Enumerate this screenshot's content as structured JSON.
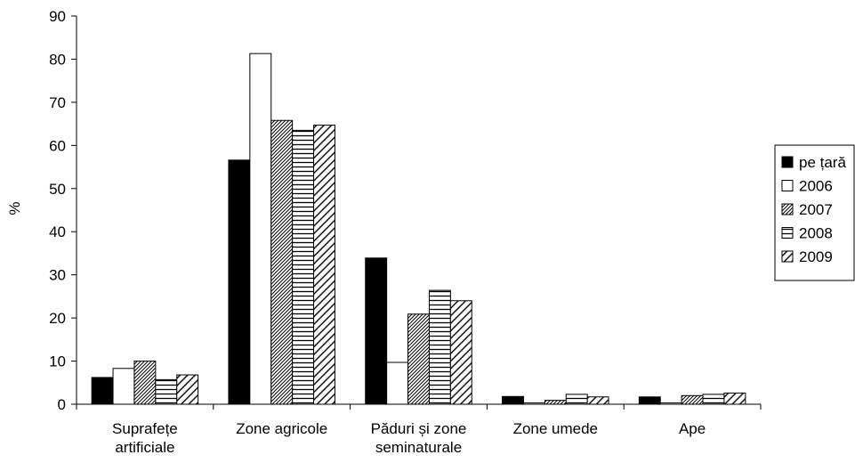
{
  "chart_data": {
    "type": "bar",
    "ylabel": "%",
    "ylim": [
      0,
      90
    ],
    "yticks": [
      0,
      10,
      20,
      30,
      40,
      50,
      60,
      70,
      80,
      90
    ],
    "grid": false,
    "legend_position": "right",
    "categories": [
      [
        "Suprafețe",
        "artificiale"
      ],
      [
        "Zone agricole"
      ],
      [
        "Păduri și zone",
        "seminaturale"
      ],
      [
        "Zone umede"
      ],
      [
        "Ape"
      ]
    ],
    "series": [
      {
        "name": "pe țară",
        "pattern": "solid-black",
        "values": [
          6.2,
          56.6,
          33.9,
          1.8,
          1.7
        ]
      },
      {
        "name": "2006",
        "pattern": "white",
        "values": [
          8.3,
          81.3,
          9.7,
          0.3,
          0.3
        ]
      },
      {
        "name": "2007",
        "pattern": "diagonal-dense",
        "values": [
          10.0,
          65.8,
          20.9,
          0.9,
          2.0
        ]
      },
      {
        "name": "2008",
        "pattern": "horizontal-lines",
        "values": [
          5.7,
          63.5,
          26.4,
          2.3,
          2.3
        ]
      },
      {
        "name": "2009",
        "pattern": "diagonal-wide",
        "values": [
          6.8,
          64.7,
          24.0,
          1.7,
          2.6
        ]
      }
    ]
  }
}
